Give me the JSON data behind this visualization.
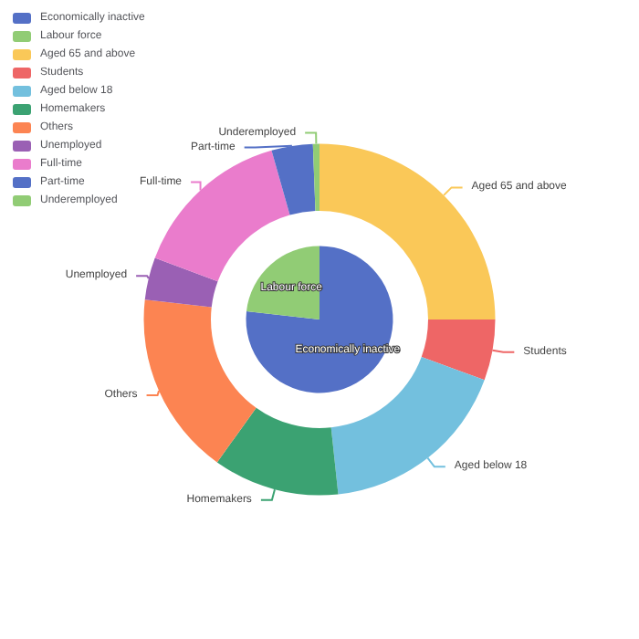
{
  "chart_data": [
    {
      "type": "pie",
      "legend": "top left",
      "categories": [
        "Economically inactive",
        "Labour force"
      ],
      "values": [
        76.8,
        23.2
      ],
      "colors": [
        "#5470c6",
        "#91cc75"
      ]
    },
    {
      "type": "donut",
      "legend": "top left",
      "categories": [
        "Aged 65 and above",
        "Students",
        "Aged below 18",
        "Homemakers",
        "Others",
        "Unemployed",
        "Full-time",
        "Part-time",
        "Underemployed"
      ],
      "values": [
        25.0,
        5.6,
        17.7,
        11.6,
        16.9,
        3.9,
        14.9,
        3.8,
        0.6
      ],
      "colors": [
        "#fac858",
        "#ee6666",
        "#73c0de",
        "#3ba272",
        "#fc8452",
        "#9a60b4",
        "#ea7ccc",
        "#5470c6",
        "#91cc75"
      ]
    }
  ]
}
